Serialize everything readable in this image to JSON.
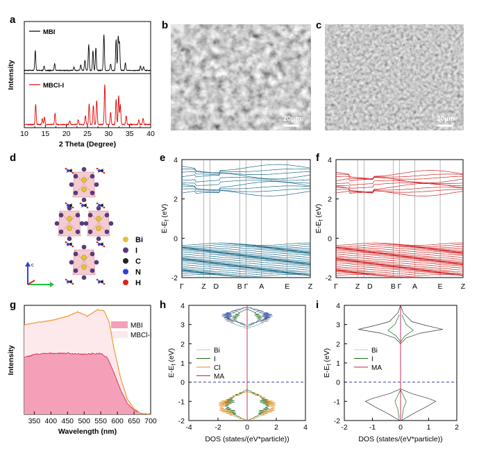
{
  "panels": {
    "a": {
      "label": "a",
      "legend_top": "MBI",
      "legend_bottom": "MBCl-I",
      "xlabel": "2 Theta (Degree)",
      "ylabel": "Intensity",
      "xticks": [
        "10",
        "15",
        "20",
        "25",
        "30",
        "35",
        "40"
      ]
    },
    "b": {
      "label": "b",
      "scale": "20μm"
    },
    "c": {
      "label": "c",
      "scale": "20μm"
    },
    "d": {
      "label": "d",
      "legend": [
        {
          "name": "Bi",
          "color": "#e8c030"
        },
        {
          "name": "I",
          "color": "#5b3a7a"
        },
        {
          "name": "C",
          "color": "#222222"
        },
        {
          "name": "N",
          "color": "#2a3fe0"
        },
        {
          "name": "H",
          "color": "#e02020"
        }
      ],
      "axis": "c"
    },
    "e": {
      "label": "e",
      "ylabel": "E-Ef (eV)",
      "yticks": [
        "4",
        "2",
        "0",
        "-2"
      ],
      "kpoints": [
        "Γ",
        "Z",
        "D",
        "B",
        "Γ",
        "A",
        "E",
        "Z"
      ],
      "color": "#1b6b8a"
    },
    "f": {
      "label": "f",
      "ylabel": "E-Ef (eV)",
      "yticks": [
        "4",
        "2",
        "0",
        "-2"
      ],
      "kpoints": [
        "Γ",
        "Z",
        "D",
        "B",
        "Γ",
        "A",
        "E",
        "Z"
      ],
      "color": "#d02020"
    },
    "g": {
      "label": "g",
      "xlabel": "Wavelength (nm)",
      "ylabel": "Intensity",
      "xticks": [
        "350",
        "400",
        "450",
        "500",
        "550",
        "600",
        "650",
        "700"
      ],
      "legend": [
        "MBI",
        "MBCl-I"
      ]
    },
    "h": {
      "label": "h",
      "xlabel": "DOS (states/(eV*particle))",
      "ylabel": "E-Ef (eV)",
      "xticks": [
        "-4",
        "-2",
        "0",
        "2",
        "4"
      ],
      "yticks": [
        "4",
        "3",
        "2",
        "1",
        "0",
        "-1",
        "-2"
      ],
      "legend": [
        "Bi",
        "I",
        "Cl",
        "MA"
      ]
    },
    "i": {
      "label": "i",
      "xlabel": "DOS (states/(eV*particle))",
      "ylabel": "E-Ef (eV)",
      "xticks": [
        "-2",
        "-1",
        "0",
        "1",
        "2"
      ],
      "yticks": [
        "4",
        "3",
        "2",
        "1",
        "0",
        "-1",
        "-2"
      ],
      "legend": [
        "Bi",
        "I",
        "MA"
      ]
    }
  },
  "chart_data": [
    {
      "type": "line",
      "panel": "a",
      "title": "",
      "xlabel": "2 Theta (Degree)",
      "ylabel": "Intensity",
      "xlim": [
        10,
        40
      ],
      "series": [
        {
          "name": "MBI",
          "color": "#000000",
          "peaks": [
            [
              12.6,
              0.55
            ],
            [
              14.7,
              0.12
            ],
            [
              17.2,
              0.18
            ],
            [
              21.8,
              0.1
            ],
            [
              23.4,
              0.15
            ],
            [
              24.4,
              0.28
            ],
            [
              25.3,
              0.72
            ],
            [
              26.3,
              0.55
            ],
            [
              27.0,
              0.62
            ],
            [
              28.9,
              1.0
            ],
            [
              30.5,
              0.18
            ],
            [
              31.8,
              0.85
            ],
            [
              32.3,
              0.92
            ],
            [
              32.6,
              0.75
            ],
            [
              34.0,
              0.2
            ],
            [
              37.6,
              0.12
            ],
            [
              38.3,
              0.1
            ]
          ]
        },
        {
          "name": "MBCl-I",
          "color": "#e00000",
          "peaks": [
            [
              12.7,
              0.5
            ],
            [
              14.3,
              0.15
            ],
            [
              14.8,
              0.18
            ],
            [
              17.3,
              0.28
            ],
            [
              20.8,
              0.1
            ],
            [
              22.8,
              0.12
            ],
            [
              24.5,
              0.22
            ],
            [
              25.4,
              0.52
            ],
            [
              26.4,
              0.48
            ],
            [
              27.2,
              0.6
            ],
            [
              29.1,
              1.0
            ],
            [
              30.5,
              0.3
            ],
            [
              31.8,
              0.62
            ],
            [
              32.4,
              0.72
            ],
            [
              32.8,
              0.5
            ],
            [
              34.2,
              0.22
            ],
            [
              37.2,
              0.12
            ],
            [
              38.2,
              0.16
            ]
          ]
        }
      ]
    },
    {
      "type": "line",
      "panel": "e",
      "title": "",
      "ylabel": "E-Ef (eV)",
      "ylim": [
        -2,
        4
      ],
      "kpoints": [
        "Γ",
        "Z",
        "D",
        "B",
        "Γ",
        "A",
        "E",
        "Z"
      ],
      "cb_range": [
        2.3,
        3.6
      ],
      "vb_range": [
        -1.9,
        -0.3
      ]
    },
    {
      "type": "line",
      "panel": "f",
      "title": "",
      "ylabel": "E-Ef (eV)",
      "ylim": [
        -2,
        4
      ],
      "kpoints": [
        "Γ",
        "Z",
        "D",
        "B",
        "Γ",
        "A",
        "E",
        "Z"
      ],
      "cb_range": [
        2.3,
        3.3
      ],
      "vb_range": [
        -1.9,
        -0.3
      ]
    },
    {
      "type": "area",
      "panel": "g",
      "title": "",
      "xlabel": "Wavelength (nm)",
      "ylabel": "Intensity",
      "xlim": [
        320,
        700
      ],
      "series": [
        {
          "name": "MBI",
          "color": "#f4a0b8",
          "x": [
            320,
            350,
            400,
            450,
            500,
            550,
            570,
            590,
            610,
            630,
            650,
            670,
            700
          ],
          "y": [
            0.52,
            0.55,
            0.56,
            0.56,
            0.55,
            0.56,
            0.52,
            0.38,
            0.22,
            0.1,
            0.04,
            0.01,
            0.0
          ]
        },
        {
          "name": "MBCl-I",
          "color": "#f09020",
          "x": [
            320,
            350,
            400,
            450,
            480,
            510,
            540,
            560,
            575,
            590,
            610,
            630,
            650,
            670,
            700
          ],
          "y": [
            0.82,
            0.84,
            0.86,
            0.9,
            0.94,
            0.9,
            0.96,
            0.95,
            0.85,
            0.6,
            0.33,
            0.14,
            0.05,
            0.01,
            0.0
          ]
        }
      ]
    },
    {
      "type": "line",
      "panel": "h",
      "title": "",
      "xlabel": "DOS (states/(eV*particle))",
      "ylabel": "E-Ef (eV)",
      "xlim": [
        -4,
        4
      ],
      "ylim": [
        -2,
        4
      ],
      "series": [
        {
          "name": "Bi"
        },
        {
          "name": "I"
        },
        {
          "name": "Cl"
        },
        {
          "name": "MA"
        }
      ]
    },
    {
      "type": "line",
      "panel": "i",
      "title": "",
      "xlabel": "DOS (states/(eV*particle))",
      "ylabel": "E-Ef (eV)",
      "xlim": [
        -2,
        2
      ],
      "ylim": [
        -2,
        4
      ],
      "series": [
        {
          "name": "Bi"
        },
        {
          "name": "I"
        },
        {
          "name": "MA"
        }
      ]
    }
  ]
}
